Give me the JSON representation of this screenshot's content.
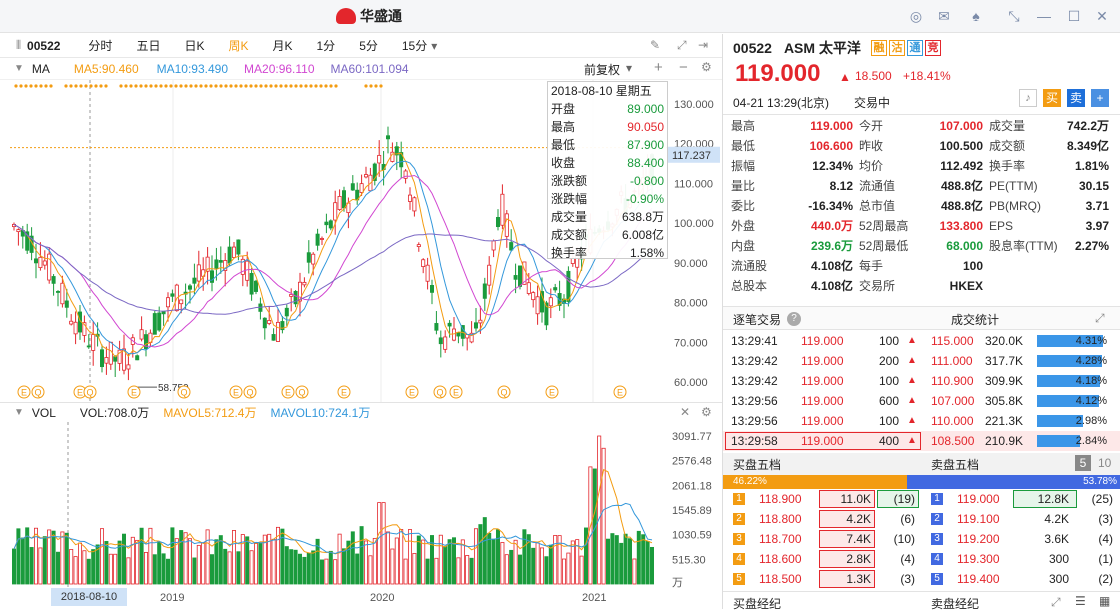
{
  "app": {
    "logo_text": "华盛通"
  },
  "toolbar": {
    "code": "00522",
    "periods": [
      "分时",
      "五日",
      "日K",
      "周K",
      "月K",
      "1分",
      "5分",
      "15分"
    ],
    "active_period": "周K",
    "adjust": "前复权"
  },
  "ma": {
    "label": "MA",
    "ma5": "MA5:90.460",
    "ma10": "MA10:93.490",
    "ma20": "MA20:96.110",
    "ma60": "MA60:101.094",
    "colors": {
      "ma5": "#f39c12",
      "ma10": "#3498db",
      "ma20": "#d147d1",
      "ma60": "#7b68c4"
    }
  },
  "price_axis": [
    "130.000",
    "120.000",
    "110.000",
    "100.000",
    "90.000",
    "80.000",
    "70.000",
    "60.000"
  ],
  "current_price_tag": "117.237",
  "low_label": "58.750",
  "tooltip": {
    "date": "2018-08-10 星期五",
    "rows": [
      {
        "k": "开盘",
        "v": "89.000",
        "c": "green"
      },
      {
        "k": "最高",
        "v": "90.050",
        "c": "red"
      },
      {
        "k": "最低",
        "v": "87.900",
        "c": "green"
      },
      {
        "k": "收盘",
        "v": "88.400",
        "c": "green"
      },
      {
        "k": "涨跌额",
        "v": "-0.800",
        "c": "green"
      },
      {
        "k": "涨跌幅",
        "v": "-0.90%",
        "c": "green"
      },
      {
        "k": "成交量",
        "v": "638.8万",
        "c": "black"
      },
      {
        "k": "成交额",
        "v": "6.008亿",
        "c": "black"
      },
      {
        "k": "换手率",
        "v": "1.58%",
        "c": "black"
      }
    ]
  },
  "vol": {
    "label": "VOL",
    "vol": "VOL:708.0万",
    "mavol5": "MAVOL5:712.4万",
    "mavol10": "MAVOL10:724.1万",
    "axis": [
      "3091.77",
      "2576.48",
      "2061.18",
      "1545.89",
      "1030.59",
      "515.30",
      "万"
    ]
  },
  "x_labels": {
    "cursor": "2018-08-10",
    "years": [
      "2019",
      "2020",
      "2021"
    ]
  },
  "event_markers": [
    "E",
    "Q",
    "E",
    "Q",
    "E",
    "Q",
    "E",
    "Q",
    "E",
    "Q",
    "E",
    "E",
    "Q",
    "E",
    "Q",
    "E",
    "E"
  ],
  "stock": {
    "code": "00522",
    "name": "ASM 太平洋",
    "tags": [
      "融",
      "沽",
      "通",
      "竞"
    ],
    "price": "119.000",
    "change": "18.500",
    "pct": "+18.41%",
    "time": "04-21 13:29(北京)",
    "status": "交易中",
    "sell_btn": "买",
    "buy_btn": "卖"
  },
  "quote": [
    [
      {
        "k": "最高",
        "v": "119.000",
        "c": "red"
      },
      {
        "k": "今开",
        "v": "107.000",
        "c": "red"
      },
      {
        "k": "成交量",
        "v": "742.2万",
        "c": "black"
      }
    ],
    [
      {
        "k": "最低",
        "v": "106.600",
        "c": "red"
      },
      {
        "k": "昨收",
        "v": "100.500",
        "c": "black"
      },
      {
        "k": "成交额",
        "v": "8.349亿",
        "c": "black"
      }
    ],
    [
      {
        "k": "振幅",
        "v": "12.34%",
        "c": "black"
      },
      {
        "k": "均价",
        "v": "112.492",
        "c": "black"
      },
      {
        "k": "换手率",
        "v": "1.81%",
        "c": "black"
      }
    ],
    [
      {
        "k": "量比",
        "v": "8.12",
        "c": "black"
      },
      {
        "k": "流通值",
        "v": "488.8亿",
        "c": "black"
      },
      {
        "k": "PE(TTM)",
        "v": "30.15",
        "c": "black"
      }
    ],
    [
      {
        "k": "委比",
        "v": "-16.34%",
        "c": "black"
      },
      {
        "k": "总市值",
        "v": "488.8亿",
        "c": "black"
      },
      {
        "k": "PB(MRQ)",
        "v": "3.71",
        "c": "black"
      }
    ],
    [
      {
        "k": "外盘",
        "v": "440.0万",
        "c": "red"
      },
      {
        "k": "52周最高",
        "v": "133.800",
        "c": "red"
      },
      {
        "k": "EPS",
        "v": "3.97",
        "c": "black"
      }
    ],
    [
      {
        "k": "内盘",
        "v": "239.6万",
        "c": "green"
      },
      {
        "k": "52周最低",
        "v": "68.000",
        "c": "green"
      },
      {
        "k": "股息率(TTM)",
        "v": "2.27%",
        "c": "black"
      }
    ],
    [
      {
        "k": "流通股",
        "v": "4.108亿",
        "c": "black"
      },
      {
        "k": "每手",
        "v": "100",
        "c": "black"
      },
      {
        "k": "",
        "v": "",
        "c": "black"
      }
    ],
    [
      {
        "k": "总股本",
        "v": "4.108亿",
        "c": "black"
      },
      {
        "k": "交易所",
        "v": "HKEX",
        "c": "black"
      },
      {
        "k": "",
        "v": "",
        "c": "black"
      }
    ]
  ],
  "trades_header": {
    "left": "逐笔交易",
    "right": "成交统计"
  },
  "trades": [
    {
      "t": "13:29:41",
      "p": "119.000",
      "q": "100"
    },
    {
      "t": "13:29:42",
      "p": "119.000",
      "q": "200"
    },
    {
      "t": "13:29:42",
      "p": "119.000",
      "q": "100"
    },
    {
      "t": "13:29:56",
      "p": "119.000",
      "q": "600"
    },
    {
      "t": "13:29:56",
      "p": "119.000",
      "q": "100"
    },
    {
      "t": "13:29:58",
      "p": "119.000",
      "q": "400"
    }
  ],
  "stats": [
    {
      "p": "115.000",
      "v": "320.0K",
      "pct": "4.31%",
      "f": 0.94
    },
    {
      "p": "111.000",
      "v": "317.7K",
      "pct": "4.28%",
      "f": 0.93
    },
    {
      "p": "110.900",
      "v": "309.9K",
      "pct": "4.18%",
      "f": 0.9
    },
    {
      "p": "107.000",
      "v": "305.8K",
      "pct": "4.12%",
      "f": 0.89
    },
    {
      "p": "110.000",
      "v": "221.3K",
      "pct": "2.98%",
      "f": 0.65
    },
    {
      "p": "108.500",
      "v": "210.9K",
      "pct": "2.84%",
      "f": 0.62
    }
  ],
  "orderbook": {
    "buy_title": "买盘五档",
    "sell_title": "卖盘五档",
    "levels_active": "5",
    "levels_alt": "10",
    "buy_pct": "46.22%",
    "sell_pct": "53.78%",
    "buy_frac": 0.4622,
    "bids": [
      {
        "n": "1",
        "p": "118.900",
        "v": "11.0K",
        "c": "(19)"
      },
      {
        "n": "2",
        "p": "118.800",
        "v": "4.2K",
        "c": "(6)"
      },
      {
        "n": "3",
        "p": "118.700",
        "v": "7.4K",
        "c": "(10)"
      },
      {
        "n": "4",
        "p": "118.600",
        "v": "2.8K",
        "c": "(4)"
      },
      {
        "n": "5",
        "p": "118.500",
        "v": "1.3K",
        "c": "(3)"
      }
    ],
    "asks": [
      {
        "n": "1",
        "p": "119.000",
        "v": "12.8K",
        "c": "(25)"
      },
      {
        "n": "2",
        "p": "119.100",
        "v": "4.2K",
        "c": "(3)"
      },
      {
        "n": "3",
        "p": "119.200",
        "v": "3.6K",
        "c": "(4)"
      },
      {
        "n": "4",
        "p": "119.300",
        "v": "300",
        "c": "(1)"
      },
      {
        "n": "5",
        "p": "119.400",
        "v": "300",
        "c": "(2)"
      }
    ]
  },
  "brokers": {
    "buy": "买盘经纪",
    "sell": "卖盘经纪"
  }
}
